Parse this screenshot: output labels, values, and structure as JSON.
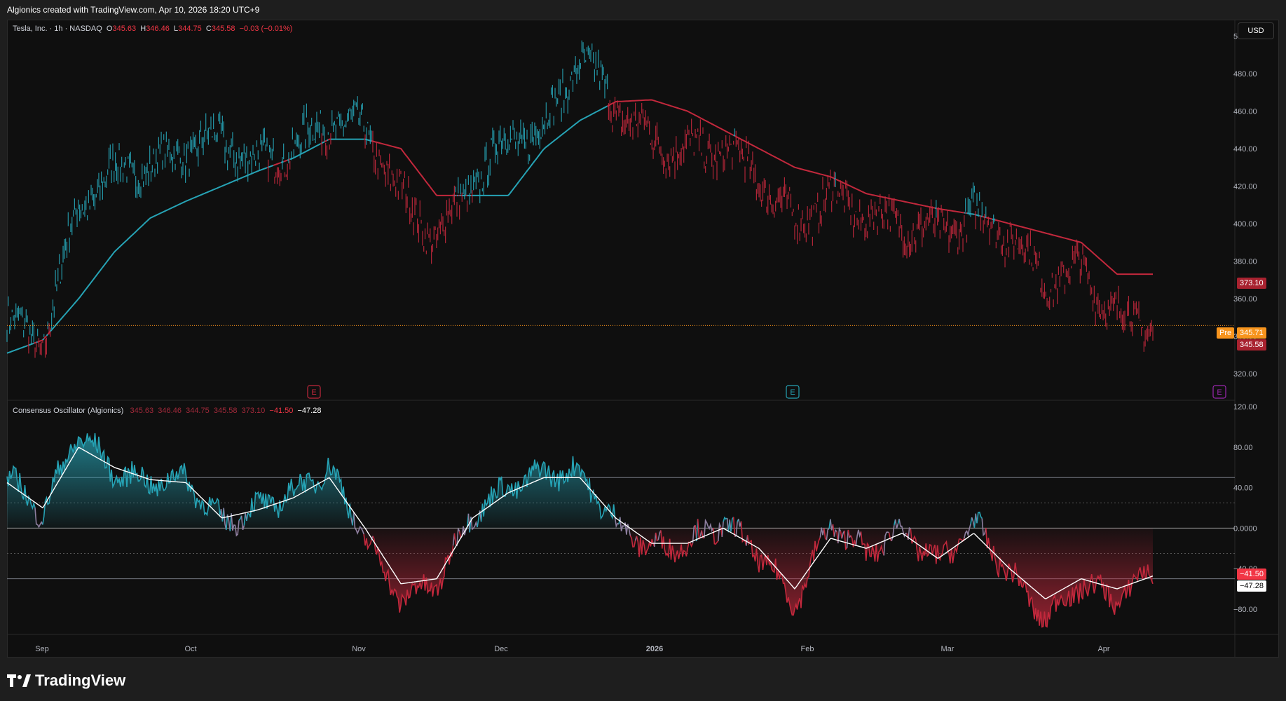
{
  "header": {
    "caption": "Algionics created with TradingView.com, Apr 10, 2026 18:20 UTC+9"
  },
  "main_legend": {
    "symbol": "Tesla, Inc. · 1h · NASDAQ",
    "o_label": "O",
    "o": "345.63",
    "h_label": "H",
    "h": "346.46",
    "l_label": "L",
    "l": "344.75",
    "c_label": "C",
    "c": "345.58",
    "change": "−0.03 (−0.01%)"
  },
  "osc_legend": {
    "name": "Consensus Oscillator (Algionics)",
    "values": [
      "345.63",
      "346.46",
      "344.75",
      "345.58",
      "373.10",
      "−41.50"
    ],
    "last": "−47.28"
  },
  "currency_button": "USD",
  "price_axis": [
    "500.00",
    "480.00",
    "460.00",
    "440.00",
    "420.00",
    "400.00",
    "380.00",
    "360.00",
    "340.00",
    "320.00"
  ],
  "osc_axis": [
    "120.00",
    "80.00",
    "40.00",
    "0.0000",
    "−40.00",
    "−80.00"
  ],
  "price_labels": {
    "baseline": "373.10",
    "pre_tag": "Pre",
    "pre": "345.71",
    "last": "345.58"
  },
  "osc_labels": {
    "osc": "−41.50",
    "signal": "−47.28"
  },
  "time_axis": [
    "Sep",
    "Oct",
    "Nov",
    "Dec",
    "2026",
    "Feb",
    "Mar",
    "Apr"
  ],
  "earnings_marker": "E",
  "brand": "TradingView",
  "colors": {
    "bull": "#26a3b5",
    "bear": "#c2283c",
    "neutral": "#8e7fa0",
    "pre": "#f7941d",
    "bg": "#0f0f0f"
  },
  "chart_data": [
    {
      "type": "line",
      "title": "Tesla, Inc. · 1h · NASDAQ",
      "x": [
        "Aug 29",
        "Sep 5",
        "Sep 12",
        "Sep 19",
        "Sep 26",
        "Oct 3",
        "Oct 10",
        "Oct 17",
        "Oct 24",
        "Oct 31",
        "Nov 7",
        "Nov 14",
        "Nov 21",
        "Nov 28",
        "Dec 5",
        "Dec 12",
        "Dec 19",
        "Dec 26",
        "Jan 2",
        "Jan 9",
        "Jan 16",
        "Jan 23",
        "Jan 30",
        "Feb 6",
        "Feb 13",
        "Feb 20",
        "Feb 27",
        "Mar 6",
        "Mar 13",
        "Mar 20",
        "Mar 27",
        "Apr 3",
        "Apr 10"
      ],
      "series": [
        {
          "name": "price",
          "values": [
            348,
            336,
            410,
            428,
            430,
            440,
            445,
            432,
            440,
            455,
            450,
            415,
            392,
            422,
            445,
            450,
            490,
            462,
            445,
            438,
            440,
            425,
            400,
            415,
            405,
            400,
            395,
            405,
            395,
            370,
            375,
            350,
            345.58
          ]
        },
        {
          "name": "baseline",
          "values": [
            331,
            338,
            360,
            385,
            403,
            412,
            420,
            428,
            435,
            445,
            445,
            440,
            415,
            415,
            415,
            440,
            455,
            465,
            466,
            460,
            450,
            440,
            430,
            425,
            416,
            412,
            408,
            405,
            400,
            395,
            390,
            373.1,
            373.1
          ]
        }
      ],
      "ylim": [
        310,
        505
      ]
    },
    {
      "type": "line",
      "title": "Consensus Oscillator (Algionics)",
      "x": [
        "Aug 29",
        "Sep 5",
        "Sep 12",
        "Sep 19",
        "Sep 26",
        "Oct 3",
        "Oct 10",
        "Oct 17",
        "Oct 24",
        "Oct 31",
        "Nov 7",
        "Nov 14",
        "Nov 21",
        "Nov 28",
        "Dec 5",
        "Dec 12",
        "Dec 19",
        "Dec 26",
        "Jan 2",
        "Jan 9",
        "Jan 16",
        "Jan 23",
        "Jan 30",
        "Feb 6",
        "Feb 13",
        "Feb 20",
        "Feb 27",
        "Mar 6",
        "Mar 13",
        "Mar 20",
        "Mar 27",
        "Apr 3",
        "Apr 10"
      ],
      "series": [
        {
          "name": "osc",
          "values": [
            50,
            15,
            95,
            55,
            45,
            50,
            5,
            20,
            35,
            60,
            -10,
            -70,
            -55,
            15,
            40,
            55,
            55,
            5,
            -20,
            -15,
            5,
            -25,
            -75,
            5,
            -25,
            0,
            -35,
            5,
            -45,
            -90,
            -55,
            -70,
            -41.5
          ]
        },
        {
          "name": "signal",
          "values": [
            45,
            20,
            80,
            60,
            48,
            45,
            10,
            18,
            30,
            50,
            0,
            -55,
            -50,
            10,
            35,
            50,
            50,
            10,
            -15,
            -15,
            0,
            -20,
            -60,
            -10,
            -20,
            -5,
            -30,
            -5,
            -40,
            -70,
            -50,
            -60,
            -47.28
          ]
        }
      ],
      "levels": [
        50,
        25,
        0,
        -40,
        -80
      ],
      "ylim": [
        -105,
        125
      ]
    }
  ]
}
